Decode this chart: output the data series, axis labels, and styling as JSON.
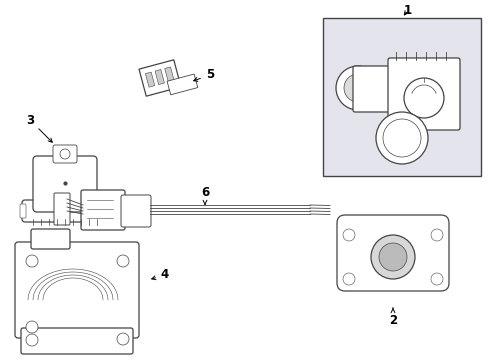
{
  "bg_color": "#ffffff",
  "line_color": "#444444",
  "box_bg": "#e4e4ec",
  "fig_w": 4.9,
  "fig_h": 3.6,
  "dpi": 100,
  "label_fontsize": 8.5
}
